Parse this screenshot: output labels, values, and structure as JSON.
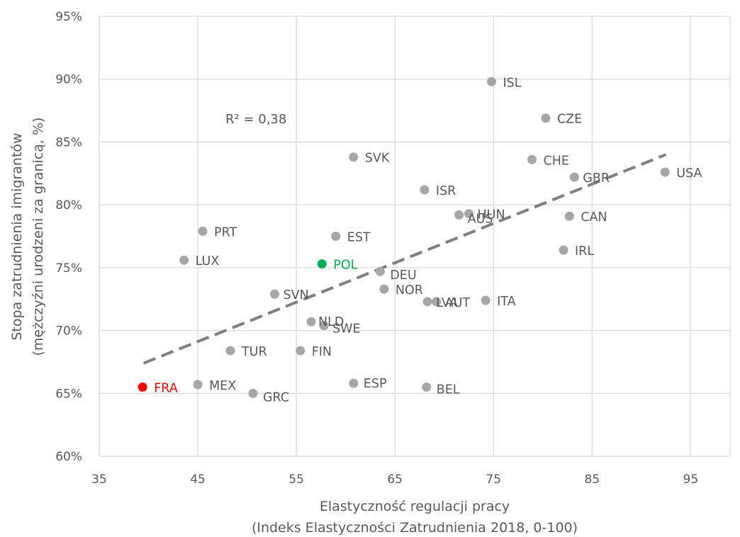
{
  "chart_data": {
    "type": "scatter",
    "xlabel": [
      "Elastyczność regulacji pracy",
      "(Indeks Elastyczności Zatrudnienia 2018, 0-100)"
    ],
    "ylabel": [
      "Stopa zatrudnienia imigrantów",
      "(mężczyźni urodzeni za granicą, %)"
    ],
    "xlim": [
      35,
      99
    ],
    "ylim": [
      60,
      95
    ],
    "xticks": [
      35,
      45,
      55,
      65,
      75,
      85,
      95
    ],
    "xtick_labels": [
      "35",
      "45",
      "55",
      "65",
      "75",
      "85",
      "95"
    ],
    "yticks": [
      60,
      65,
      70,
      75,
      80,
      85,
      90,
      95
    ],
    "ytick_labels": [
      "60%",
      "65%",
      "70%",
      "75%",
      "80%",
      "85%",
      "90%",
      "95%"
    ],
    "grid": true,
    "annotation": "R² = 0,38",
    "trendline": {
      "x": [
        39.5,
        92.5
      ],
      "y": [
        67.4,
        84.0
      ],
      "color": "#7f7f7f",
      "style": "dashed"
    },
    "colors": {
      "default": "#a6a6a6",
      "POL": "#00b050",
      "FRA": "#ff0000",
      "axis_text": "#595959",
      "grid": "#d9d9d9"
    },
    "points": [
      {
        "label": "ISL",
        "x": 74.8,
        "y": 89.8
      },
      {
        "label": "CZE",
        "x": 80.3,
        "y": 86.9
      },
      {
        "label": "SVK",
        "x": 60.8,
        "y": 83.8
      },
      {
        "label": "CHE",
        "x": 78.9,
        "y": 83.6
      },
      {
        "label": "USA",
        "x": 92.4,
        "y": 82.6
      },
      {
        "label": "GBR",
        "x": 83.2,
        "y": 82.2
      },
      {
        "label": "ISR",
        "x": 68.0,
        "y": 81.2
      },
      {
        "label": "AUS",
        "x": 71.5,
        "y": 79.2
      },
      {
        "label": "HUN",
        "x": 72.5,
        "y": 79.3
      },
      {
        "label": "CAN",
        "x": 82.7,
        "y": 79.1
      },
      {
        "label": "PRT",
        "x": 45.5,
        "y": 77.9
      },
      {
        "label": "EST",
        "x": 59.0,
        "y": 77.5
      },
      {
        "label": "IRL",
        "x": 82.1,
        "y": 76.4
      },
      {
        "label": "LUX",
        "x": 43.6,
        "y": 75.6
      },
      {
        "label": "POL",
        "x": 57.6,
        "y": 75.3
      },
      {
        "label": "DEU",
        "x": 63.5,
        "y": 74.7
      },
      {
        "label": "NOR",
        "x": 63.9,
        "y": 73.3
      },
      {
        "label": "SVN",
        "x": 52.8,
        "y": 72.9
      },
      {
        "label": "LVA",
        "x": 68.3,
        "y": 72.3
      },
      {
        "label": "AUT",
        "x": 69.2,
        "y": 72.3
      },
      {
        "label": "ITA",
        "x": 74.2,
        "y": 72.4
      },
      {
        "label": "NLD",
        "x": 56.5,
        "y": 70.7
      },
      {
        "label": "SWE",
        "x": 57.8,
        "y": 70.4
      },
      {
        "label": "TUR",
        "x": 48.3,
        "y": 68.4
      },
      {
        "label": "FIN",
        "x": 55.4,
        "y": 68.4
      },
      {
        "label": "ESP",
        "x": 60.8,
        "y": 65.8
      },
      {
        "label": "MEX",
        "x": 45.0,
        "y": 65.7
      },
      {
        "label": "BEL",
        "x": 68.2,
        "y": 65.5
      },
      {
        "label": "FRA",
        "x": 39.4,
        "y": 65.5
      },
      {
        "label": "GRC",
        "x": 50.6,
        "y": 65.0
      }
    ]
  }
}
